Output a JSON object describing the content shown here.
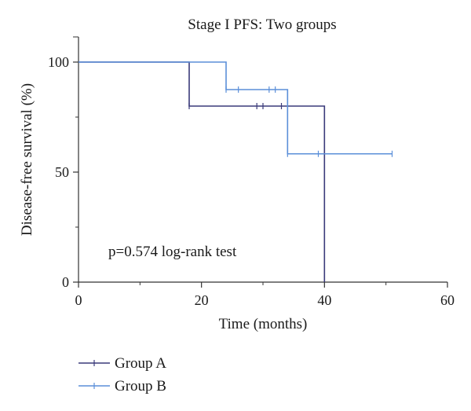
{
  "chart_data": {
    "type": "line",
    "step": true,
    "title": "Stage I PFS: Two groups",
    "xlabel": "Time (months)",
    "ylabel": "Disease-free survival (%)",
    "xlim": [
      0,
      60
    ],
    "ylim": [
      0,
      100
    ],
    "xticks": [
      0,
      20,
      40,
      60
    ],
    "yticks": [
      0,
      50,
      100
    ],
    "grid": false,
    "legend_position": "bottom-left",
    "annotation": "p=0.574 log-rank test",
    "series": [
      {
        "name": "Group A",
        "color": "#3a3a7a",
        "steps": [
          [
            0,
            100
          ],
          [
            18,
            100
          ],
          [
            18,
            80
          ],
          [
            40,
            80
          ],
          [
            40,
            0
          ]
        ],
        "censored": [
          [
            18,
            80
          ],
          [
            29,
            80
          ],
          [
            30,
            80
          ],
          [
            33,
            80
          ]
        ]
      },
      {
        "name": "Group B",
        "color": "#5b8fd9",
        "steps": [
          [
            0,
            100
          ],
          [
            24,
            100
          ],
          [
            24,
            87.5
          ],
          [
            34,
            87.5
          ],
          [
            34,
            58.3
          ],
          [
            51,
            58.3
          ]
        ],
        "censored": [
          [
            24,
            87.5
          ],
          [
            26,
            87.5
          ],
          [
            31,
            87.5
          ],
          [
            32,
            87.5
          ],
          [
            34,
            58.3
          ],
          [
            39,
            58.3
          ],
          [
            51,
            58.3
          ]
        ]
      }
    ]
  }
}
